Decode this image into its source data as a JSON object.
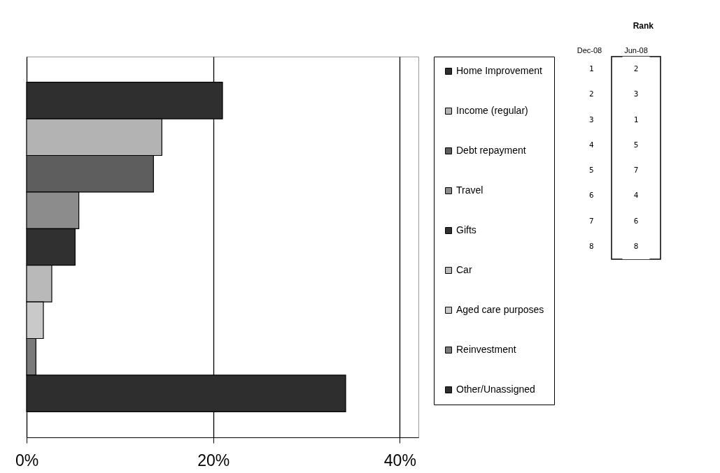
{
  "chart_data": [
    {
      "type": "bar",
      "orientation": "horizontal",
      "stacked": true,
      "categories": [
        null,
        null,
        null,
        null,
        null,
        null,
        null,
        null,
        null
      ],
      "series": [
        {
          "name": "Home Improvement",
          "color": "#2f2f2f",
          "values": [
            21.0,
            null,
            null,
            null,
            null,
            null,
            null,
            null,
            null
          ]
        },
        {
          "name": "Income (regular)",
          "color": "#b3b3b3",
          "values": [
            null,
            14.5,
            null,
            null,
            null,
            null,
            null,
            null,
            null
          ]
        },
        {
          "name": "Debt repayment",
          "color": "#5e5e5e",
          "values": [
            null,
            null,
            13.6,
            null,
            null,
            null,
            null,
            null,
            null
          ]
        },
        {
          "name": "Travel",
          "color": "#8c8c8c",
          "values": [
            null,
            null,
            null,
            5.6,
            null,
            null,
            null,
            null,
            null
          ]
        },
        {
          "name": "Gifts",
          "color": "#303030",
          "values": [
            null,
            null,
            null,
            null,
            5.2,
            null,
            null,
            null,
            null
          ]
        },
        {
          "name": "Car",
          "color": "#b9b9b9",
          "values": [
            null,
            null,
            null,
            null,
            null,
            2.7,
            null,
            null,
            null
          ]
        },
        {
          "name": "Aged care purposes",
          "color": "#c9c9c9",
          "values": [
            null,
            null,
            null,
            null,
            null,
            null,
            1.8,
            null,
            null
          ]
        },
        {
          "name": "Reinvestment",
          "color": "#7a7a7a",
          "values": [
            null,
            null,
            null,
            null,
            null,
            null,
            null,
            1.0,
            null
          ]
        },
        {
          "name": "Other/Unassigned",
          "color": "#2e2e2e",
          "values": [
            null,
            null,
            null,
            null,
            null,
            null,
            null,
            null,
            34.2
          ]
        }
      ],
      "xlim": [
        0,
        42
      ],
      "xticks": [
        {
          "value": 0,
          "label": "0%"
        },
        {
          "value": 20,
          "label": "20%"
        },
        {
          "value": 40,
          "label": "40%"
        }
      ],
      "grid": "x",
      "legend": "right"
    },
    {
      "type": "heatmap",
      "title": "Rank",
      "ylabel": "Dec-08",
      "categories": [
        "Jun-08"
      ],
      "y_categories": [
        "1",
        "2",
        "3",
        "4",
        "5",
        "6",
        "7",
        "8"
      ],
      "data_labels": true,
      "cells": [
        [
          2
        ],
        [
          3
        ],
        [
          1
        ],
        [
          5
        ],
        [
          7
        ],
        [
          4
        ],
        [
          6
        ],
        [
          8
        ]
      ]
    }
  ]
}
